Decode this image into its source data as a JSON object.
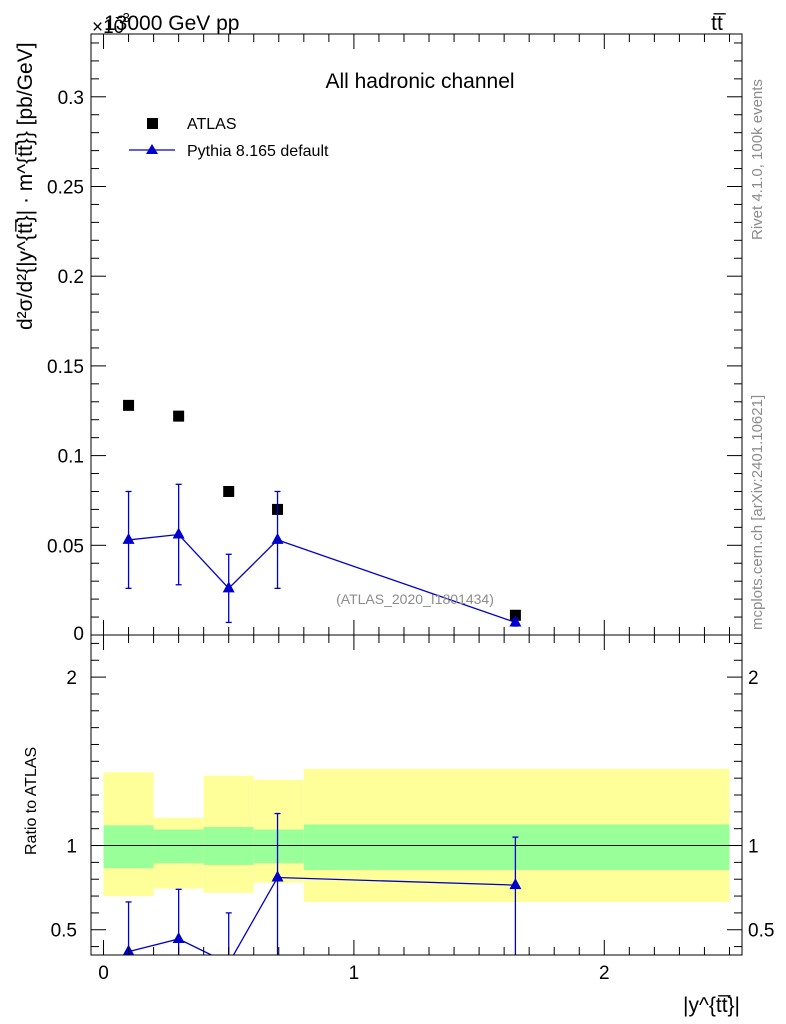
{
  "header": {
    "energy_label": "13000 GeV pp",
    "process_label": "tt̅",
    "exponent_label": "×10",
    "exponent_power": "−3",
    "channel_label": "All hadronic channel",
    "analysis_tag": "(ATLAS_2020_I1801434)",
    "rivet_label": "Rivet 4.1.0,  100k events",
    "site_label": "mcplots.cern.ch [arXiv:2401.10621]"
  },
  "chart_data": [
    {
      "type": "scatter",
      "title": "All hadronic channel",
      "ylabel": "d²σ/d²{|y^{tt̅}| · m^{tt̅}} [pb/GeV]",
      "xlabel": "|y^{tt̅}|",
      "xlim": [
        -0.05,
        2.55
      ],
      "ylim": [
        0,
        0.335
      ],
      "y_scale_factor": "1e-3",
      "y_ticks": [
        0.05,
        0.1,
        0.15,
        0.2,
        0.25,
        0.3
      ],
      "y_tick_labels": [
        "0.05",
        "0.1",
        "0.15",
        "0.2",
        "0.25",
        "0.3"
      ],
      "y_zero_label": "0",
      "legend_position": "top-left",
      "series": [
        {
          "name": "ATLAS",
          "marker": "square",
          "color": "#000000",
          "x": [
            0.1,
            0.3,
            0.5,
            0.695,
            1.645
          ],
          "y": [
            0.128,
            0.122,
            0.08,
            0.07,
            0.011
          ]
        },
        {
          "name": "Pythia 8.165 default",
          "marker": "triangle",
          "color": "#0000cc",
          "x": [
            0.1,
            0.3,
            0.5,
            0.695,
            1.645
          ],
          "y": [
            0.053,
            0.056,
            0.026,
            0.053,
            0.007
          ],
          "err_low": [
            0.027,
            0.028,
            0.019,
            0.027,
            0.002
          ],
          "err_high": [
            0.027,
            0.028,
            0.019,
            0.027,
            0.002
          ]
        }
      ]
    },
    {
      "type": "line",
      "ylabel": "Ratio to ATLAS",
      "xlabel": "|y^{tt̅}|",
      "xlim": [
        -0.05,
        2.55
      ],
      "ylim": [
        0.35,
        2.25
      ],
      "x_ticks": [
        0,
        1,
        2
      ],
      "x_tick_labels": [
        "0",
        "1",
        "2"
      ],
      "y_ticks": [
        0.5,
        1,
        2
      ],
      "y_tick_labels": [
        "0.5",
        "1",
        "2"
      ],
      "bin_edges": [
        0,
        0.2,
        0.4,
        0.6,
        0.8,
        2.5
      ],
      "band_inner": {
        "color": "#99ff99",
        "low": [
          0.865,
          0.895,
          0.885,
          0.895,
          0.855
        ],
        "high": [
          1.12,
          1.095,
          1.11,
          1.095,
          1.125
        ]
      },
      "band_outer": {
        "color": "#ffff99",
        "low": [
          0.7,
          0.745,
          0.72,
          0.78,
          0.665
        ],
        "high": [
          1.435,
          1.165,
          1.415,
          1.39,
          1.455
        ]
      },
      "reference_line": 1,
      "series": [
        {
          "name": "Pythia 8.165 default",
          "marker": "triangle",
          "color": "#0000cc",
          "x": [
            0.1,
            0.3,
            0.5,
            0.695,
            1.645
          ],
          "y": [
            0.37,
            0.445,
            0.3,
            0.81,
            0.765
          ],
          "err_low": [
            0.3,
            0.3,
            0.3,
            0.5,
            0.5
          ],
          "err_high": [
            0.295,
            0.295,
            0.3,
            0.38,
            0.285
          ]
        }
      ]
    }
  ],
  "colors": {
    "data": "#000000",
    "mc": "#0000cc",
    "band_inner": "#99ff99",
    "band_outer": "#ffff99",
    "watermark": "#8c8c8c"
  }
}
